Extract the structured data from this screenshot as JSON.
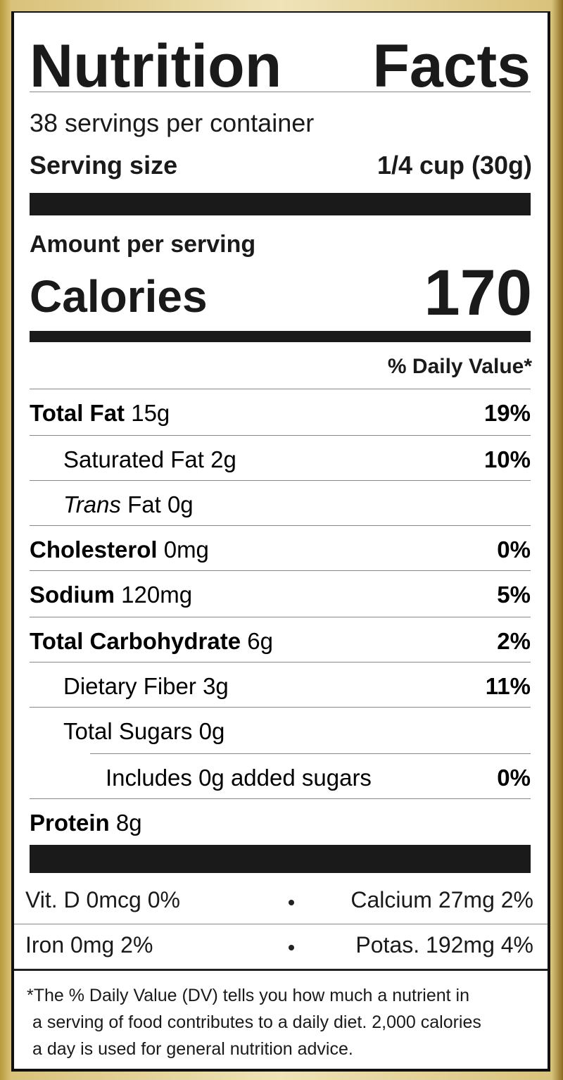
{
  "title": "Nutrition Facts",
  "servings": "38 servings per container",
  "serving_size": {
    "label": "Serving size",
    "value": "1/4 cup (30g)"
  },
  "amount_per_serving": "Amount per serving",
  "calories": {
    "label": "Calories",
    "value": "170"
  },
  "dv_header": "% Daily Value*",
  "rows": [
    {
      "name": "Total Fat",
      "amount": "15g",
      "dv": "19%"
    },
    {
      "name": "Saturated Fat",
      "amount": "2g",
      "dv": "10%"
    },
    {
      "name_italic": "Trans",
      "name": "Fat",
      "amount": "0g"
    },
    {
      "name": "Cholesterol",
      "amount": "0mg",
      "dv": "0%"
    },
    {
      "name": "Sodium",
      "amount": "120mg",
      "dv": "5%"
    },
    {
      "name": "Total Carbohydrate",
      "amount": "6g",
      "dv": "2%"
    },
    {
      "name": "Dietary Fiber",
      "amount": "3g",
      "dv": "11%"
    },
    {
      "name": "Total Sugars",
      "amount": "0g"
    },
    {
      "name": "Includes 0g added sugars",
      "dv": "0%"
    },
    {
      "name": "Protein",
      "amount": "8g"
    }
  ],
  "vitamins": [
    [
      "Vit. D 0mcg 0%",
      "Calcium 27mg 2%"
    ],
    [
      "Iron 0mg 2%",
      "Potas. 192mg 4%"
    ]
  ],
  "footnote": [
    "*The % Daily Value (DV) tells you how much a nutrient in",
    "a serving of food contributes to a daily diet. 2,000 calories",
    "a day is used for general nutrition advice."
  ]
}
